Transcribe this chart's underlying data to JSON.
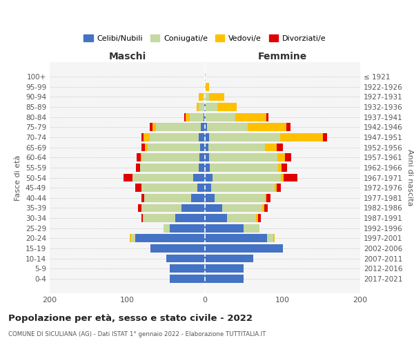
{
  "age_groups": [
    "0-4",
    "5-9",
    "10-14",
    "15-19",
    "20-24",
    "25-29",
    "30-34",
    "35-39",
    "40-44",
    "45-49",
    "50-54",
    "55-59",
    "60-64",
    "65-69",
    "70-74",
    "75-79",
    "80-84",
    "85-89",
    "90-94",
    "95-99",
    "100+"
  ],
  "birth_years": [
    "2017-2021",
    "2012-2016",
    "2007-2011",
    "2002-2006",
    "1997-2001",
    "1992-1996",
    "1987-1991",
    "1982-1986",
    "1977-1981",
    "1972-1976",
    "1967-1971",
    "1962-1966",
    "1957-1961",
    "1952-1956",
    "1947-1951",
    "1942-1946",
    "1937-1941",
    "1932-1936",
    "1927-1931",
    "1922-1926",
    "≤ 1921"
  ],
  "maschi": {
    "celibi": [
      45,
      45,
      50,
      70,
      90,
      45,
      38,
      30,
      18,
      10,
      15,
      8,
      7,
      6,
      8,
      5,
      2,
      1,
      0,
      0,
      0
    ],
    "coniugati": [
      0,
      0,
      0,
      0,
      5,
      8,
      42,
      52,
      60,
      72,
      78,
      76,
      74,
      68,
      63,
      58,
      18,
      7,
      3,
      0,
      0
    ],
    "vedovi": [
      0,
      0,
      0,
      0,
      2,
      0,
      0,
      0,
      0,
      0,
      0,
      0,
      2,
      3,
      8,
      5,
      5,
      3,
      5,
      0,
      0
    ],
    "divorziati": [
      0,
      0,
      0,
      0,
      0,
      0,
      2,
      4,
      4,
      8,
      12,
      5,
      5,
      5,
      3,
      3,
      2,
      0,
      0,
      0,
      0
    ]
  },
  "femmine": {
    "nubili": [
      50,
      50,
      62,
      100,
      80,
      50,
      28,
      22,
      12,
      8,
      10,
      6,
      5,
      4,
      5,
      3,
      1,
      1,
      0,
      0,
      0
    ],
    "coniugate": [
      0,
      0,
      0,
      0,
      8,
      20,
      38,
      52,
      65,
      82,
      88,
      88,
      88,
      73,
      92,
      52,
      38,
      15,
      5,
      0,
      0
    ],
    "vedove": [
      0,
      0,
      0,
      0,
      2,
      0,
      2,
      2,
      2,
      2,
      3,
      5,
      10,
      15,
      55,
      50,
      40,
      25,
      20,
      5,
      1
    ],
    "divorziate": [
      0,
      0,
      0,
      0,
      0,
      0,
      4,
      5,
      5,
      6,
      18,
      7,
      8,
      8,
      5,
      5,
      3,
      0,
      0,
      0,
      0
    ]
  },
  "colors": {
    "celibi": "#4472c4",
    "coniugati": "#c5d9a0",
    "vedovi": "#ffc000",
    "divorziati": "#e00000"
  },
  "title": "Popolazione per età, sesso e stato civile - 2022",
  "subtitle": "COMUNE DI SICULIANA (AG) - Dati ISTAT 1° gennaio 2022 - Elaborazione TUTTITALIA.IT",
  "xlabel_left": "Maschi",
  "xlabel_right": "Femmine",
  "ylabel_left": "Fasce di età",
  "ylabel_right": "Anni di nascita",
  "xlim": 200,
  "legend_labels": [
    "Celibi/Nubili",
    "Coniugati/e",
    "Vedovi/e",
    "Divorziati/e"
  ]
}
